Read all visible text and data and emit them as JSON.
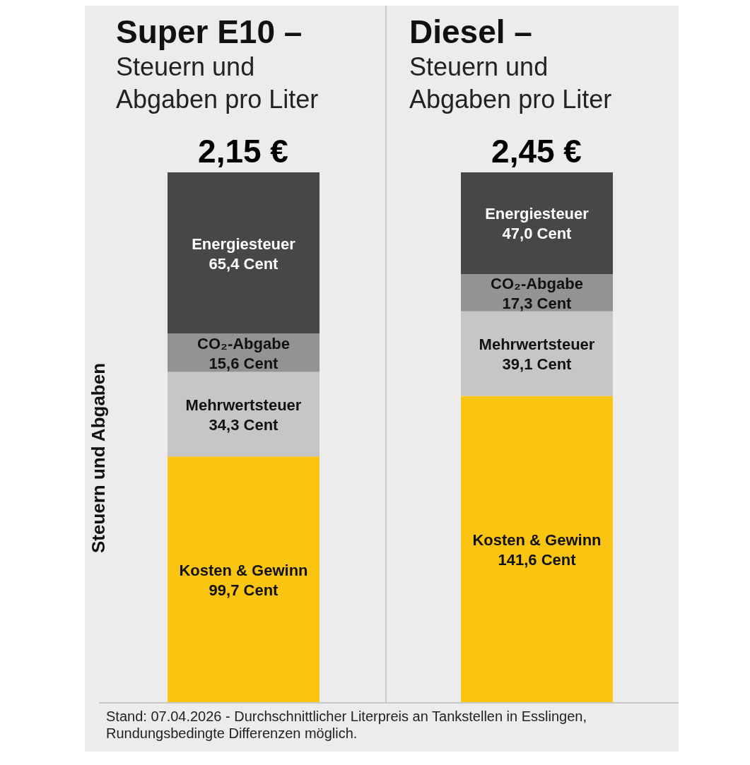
{
  "chart_data": [
    {
      "type": "bar",
      "title": "Super E10 –",
      "subtitle": "Steuern und Abgaben pro Liter",
      "ylabel": "Steuern und Abgaben",
      "categories": [
        null
      ],
      "stacked": true,
      "series": [
        {
          "name": "Kosten & Gewinn",
          "color": "#f9c511",
          "values": [
            99.7
          ],
          "value_labels": [
            "99,7 Cent"
          ]
        },
        {
          "name": "Mehrwertsteuer",
          "color": "#c6c6c6",
          "values": [
            34.3
          ],
          "value_labels": [
            "34,3 Cent"
          ]
        },
        {
          "name": "CO₂-Abgabe",
          "color": "#939393",
          "values": [
            15.6
          ],
          "value_labels": [
            "15,6 Cent"
          ]
        },
        {
          "name": "Energiesteuer",
          "color": "#474747",
          "values": [
            65.4
          ],
          "value_labels": [
            "65,4 Cent"
          ]
        }
      ],
      "annotations": [
        {
          "text": "2,15 €",
          "y": 215
        },
        "Stand: 07.04.2026 - Durchschnittlicher Literpreis an Tankstellen in Esslingen, Rundungsbedingte Differenzen möglich."
      ]
    },
    {
      "type": "bar",
      "title": "Diesel –",
      "subtitle": "Steuern und Abgaben pro Liter",
      "categories": [
        null
      ],
      "stacked": true,
      "annotations": [
        {
          "text": "2,45 €",
          "y": 245
        }
      ],
      "series": [
        {
          "name": "Kosten & Gewinn",
          "color": "#f9c511",
          "values": [
            141.6
          ],
          "value_labels": [
            "141,6 Cent"
          ]
        },
        {
          "name": "Mehrwertsteuer",
          "color": "#c6c6c6",
          "values": [
            39.1
          ],
          "value_labels": [
            "39,1 Cent"
          ]
        },
        {
          "name": "CO₂-Abgabe",
          "color": "#939393",
          "values": [
            17.3
          ],
          "value_labels": [
            "17,3 Cent"
          ]
        },
        {
          "name": "Energiesteuer",
          "color": "#474747",
          "values": [
            47.0
          ],
          "value_labels": [
            "47,0 Cent"
          ]
        }
      ]
    }
  ]
}
